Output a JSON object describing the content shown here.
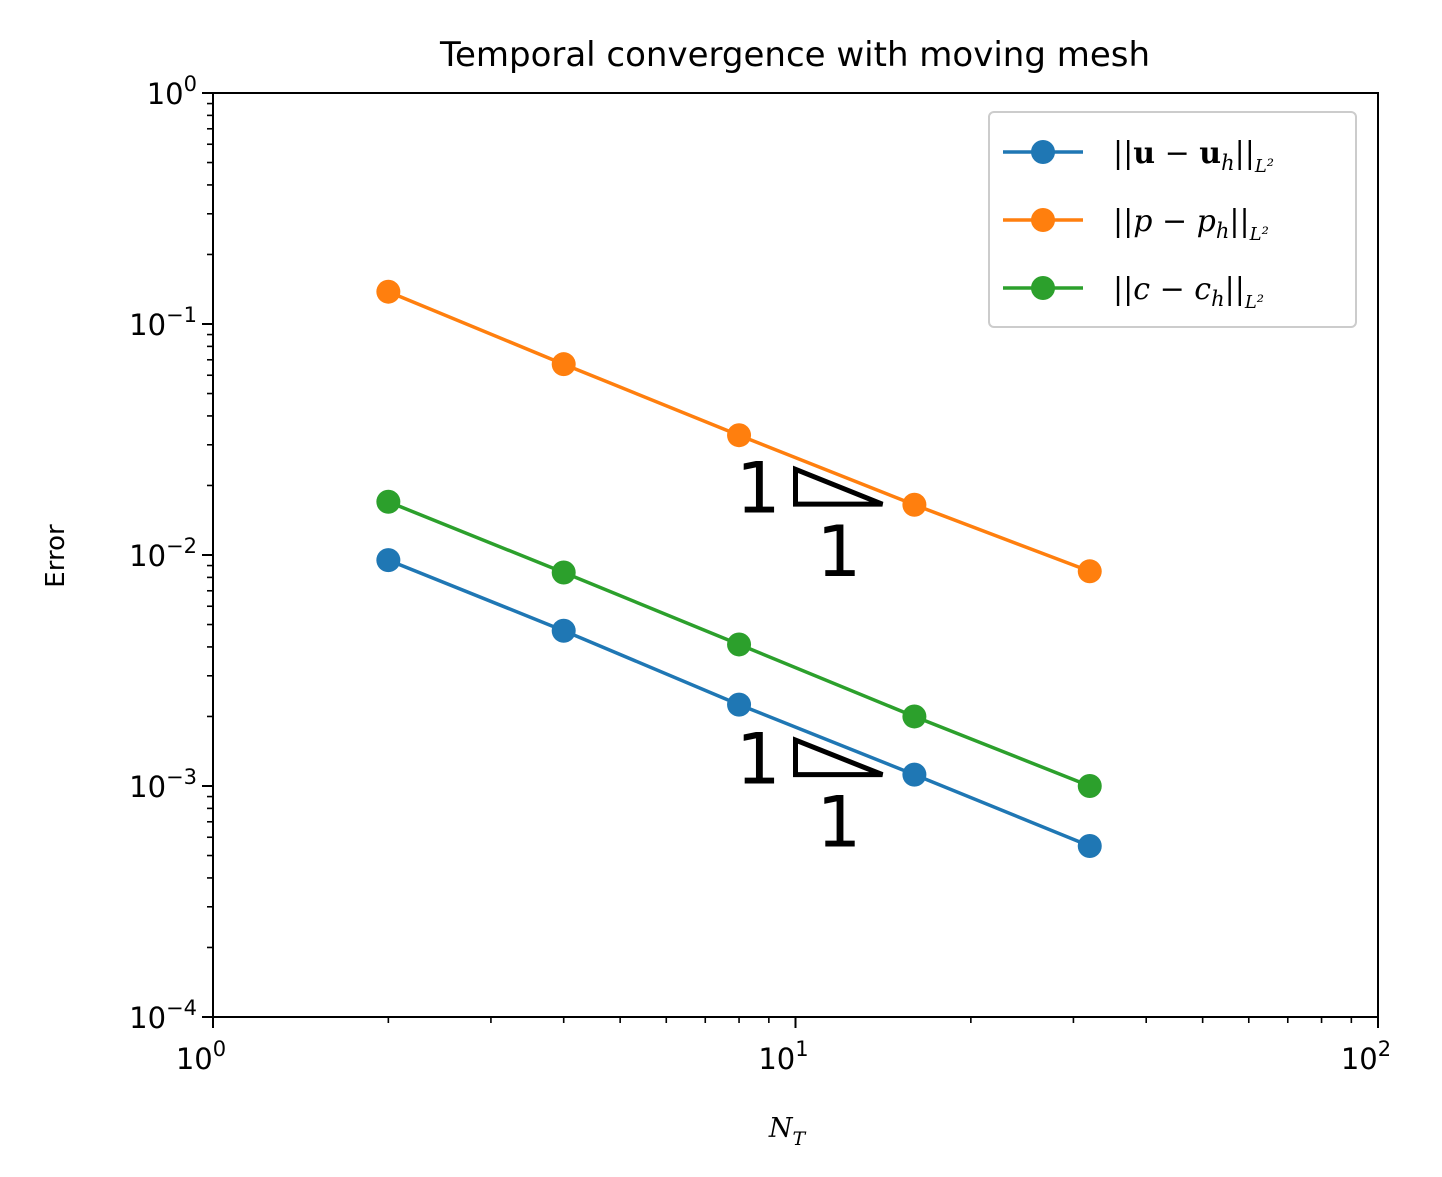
{
  "chart_data": {
    "type": "line",
    "title": "Temporal convergence with moving mesh",
    "xlabel": "N",
    "xlabel_sub": "T",
    "ylabel": "Error",
    "x_scale": "log",
    "y_scale": "log",
    "xlim": [
      1,
      100
    ],
    "ylim": [
      0.0001,
      1
    ],
    "x_tick_labels": [
      {
        "value": 1,
        "base": "10",
        "exp": "0"
      },
      {
        "value": 10,
        "base": "10",
        "exp": "1"
      },
      {
        "value": 100,
        "base": "10",
        "exp": "2"
      }
    ],
    "y_tick_labels": [
      {
        "value": 0.0001,
        "base": "10",
        "exp": "−4"
      },
      {
        "value": 0.001,
        "base": "10",
        "exp": "−3"
      },
      {
        "value": 0.01,
        "base": "10",
        "exp": "−2"
      },
      {
        "value": 0.1,
        "base": "10",
        "exp": "−1"
      },
      {
        "value": 1,
        "base": "10",
        "exp": "0"
      }
    ],
    "grid": false,
    "legend_position": "top-right",
    "x": [
      2,
      4,
      8,
      16,
      32
    ],
    "series": [
      {
        "name": "||u − u_h||_L²",
        "legend_parts": [
          "||",
          "u",
          " − ",
          "u",
          "h",
          "||",
          "L²"
        ],
        "color": "#1f77b4",
        "values": [
          0.0095,
          0.0047,
          0.00225,
          0.00112,
          0.00055
        ]
      },
      {
        "name": "||p − p_h||_L²",
        "legend_parts": [
          "||",
          "p",
          " − ",
          "p",
          "h",
          "||",
          "L²"
        ],
        "color": "#ff7f0e",
        "values": [
          0.138,
          0.067,
          0.033,
          0.0165,
          0.0085
        ]
      },
      {
        "name": "||c − c_h||_L²",
        "legend_parts": [
          "||",
          "c",
          " − ",
          "c",
          "h",
          "||",
          "L²"
        ],
        "color": "#2ca02c",
        "values": [
          0.017,
          0.0084,
          0.0041,
          0.002,
          0.001
        ]
      }
    ],
    "slope_triangles": [
      {
        "rise_label": "1",
        "run_label": "1",
        "x_start": 10,
        "x_end": 14.1,
        "y_top": 0.0235,
        "y_bottom": 0.0166
      },
      {
        "rise_label": "1",
        "run_label": "1",
        "x_start": 10,
        "x_end": 14.1,
        "y_top": 0.00158,
        "y_bottom": 0.00112
      }
    ]
  }
}
